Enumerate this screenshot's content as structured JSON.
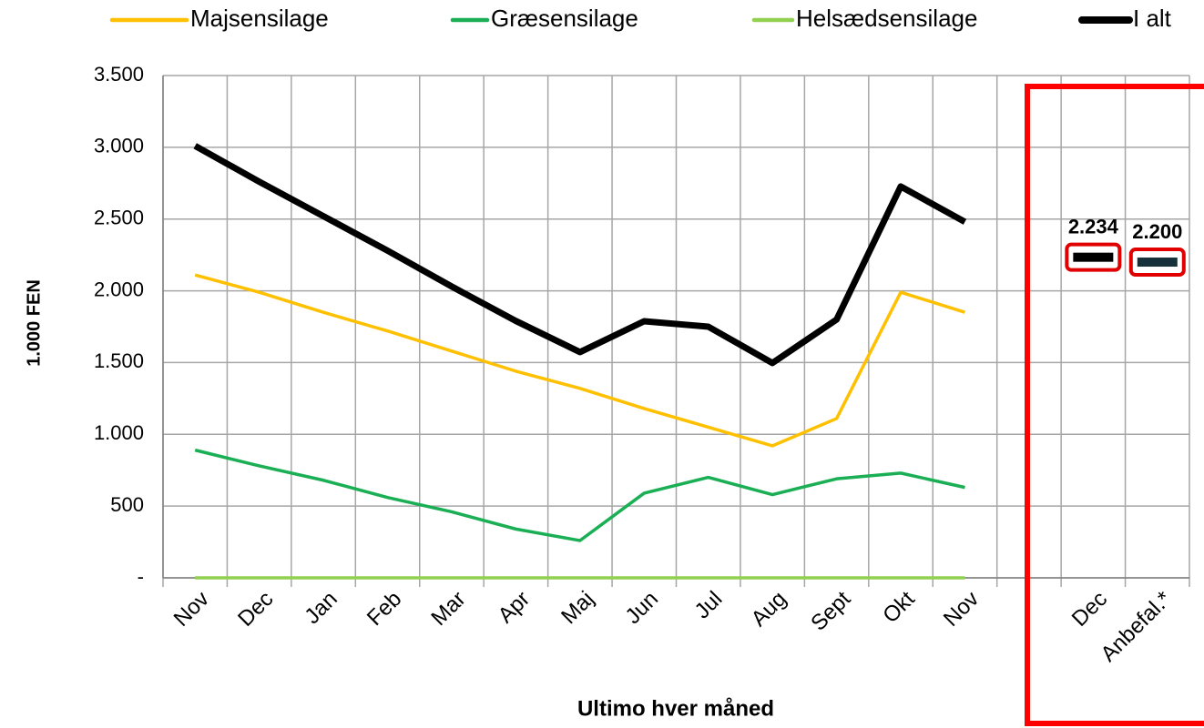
{
  "chart_data": {
    "type": "line",
    "y_label": "1.000 FEN",
    "x_label": "Ultimo hver måned",
    "categories": [
      "Nov",
      "Dec",
      "Jan",
      "Feb",
      "Mar",
      "Apr",
      "Maj",
      "Jun",
      "Jul",
      "Aug",
      "Sept",
      "Okt",
      "Nov",
      null,
      "Dec",
      "Anbefal.*"
    ],
    "series": [
      {
        "name": "Majsensilage",
        "color": "#ffc000",
        "values": [
          2110,
          1990,
          1850,
          1720,
          1580,
          1440,
          1320,
          1180,
          1050,
          920,
          1110,
          1990,
          1850,
          null,
          null,
          null
        ]
      },
      {
        "name": "Græsensilage",
        "color": "#1aaf54",
        "values": [
          890,
          780,
          680,
          560,
          460,
          340,
          260,
          590,
          700,
          580,
          690,
          730,
          630,
          null,
          null,
          null
        ]
      },
      {
        "name": "Helsædsensilage",
        "color": "#92d050",
        "values": [
          0,
          0,
          0,
          0,
          0,
          0,
          0,
          0,
          0,
          0,
          0,
          0,
          0,
          null,
          null,
          null
        ]
      },
      {
        "name": "I alt",
        "color": "#000000",
        "values": [
          3010,
          2760,
          2520,
          2280,
          2030,
          1790,
          1573,
          1788,
          1750,
          1497,
          1800,
          2727,
          2480,
          null,
          null,
          null
        ]
      }
    ],
    "highlights": {
      "values": [
        null,
        null,
        null,
        null,
        null,
        null,
        null,
        null,
        null,
        null,
        null,
        null,
        null,
        null,
        2234,
        2200
      ],
      "value_labels": [
        null,
        null,
        null,
        null,
        null,
        null,
        null,
        null,
        null,
        null,
        null,
        null,
        null,
        null,
        "2.234",
        "2.200"
      ],
      "colors": [
        "#000000",
        "#000000",
        "#000000",
        "#000000",
        "#000000",
        "#000000",
        "#000000",
        "#000000",
        "#000000",
        "#000000",
        "#000000",
        "#000000",
        "#000000",
        "#000000",
        "#000000",
        "#17313a"
      ],
      "box_color": "#e00000"
    },
    "ylim": [
      0,
      3500
    ],
    "yticks": [
      {
        "value": 0,
        "label": "-"
      },
      500,
      {
        "value": 1000,
        "label": "1.000"
      },
      {
        "value": 1500,
        "label": "1.500"
      },
      {
        "value": 2000,
        "label": "2.000"
      },
      {
        "value": 2500,
        "label": "2.500"
      },
      {
        "value": 3000,
        "label": "3.000"
      },
      {
        "value": 3500,
        "label": "3.500"
      }
    ],
    "grid": true,
    "legend": "top"
  }
}
